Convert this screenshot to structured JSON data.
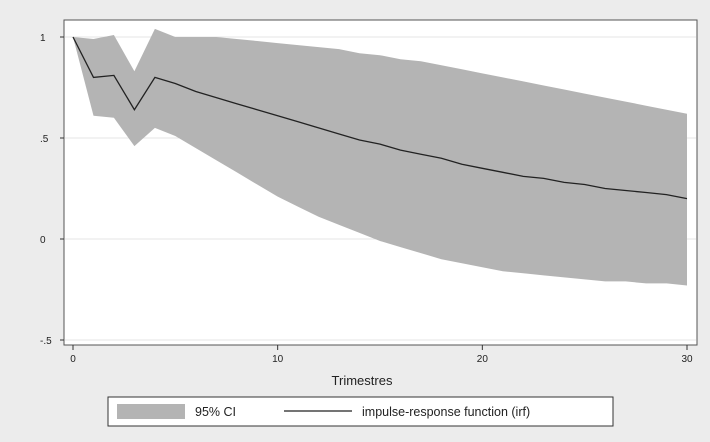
{
  "chart_data": {
    "type": "area",
    "xlabel": "Trimestres",
    "ylabel": "",
    "title": "",
    "xlim": [
      0,
      30
    ],
    "ylim": [
      -0.5,
      1
    ],
    "xticks": [
      0,
      10,
      20,
      30
    ],
    "xtick_labels": [
      "0",
      "10",
      "20",
      "30"
    ],
    "yticks": [
      1,
      0.5,
      0,
      -0.5
    ],
    "ytick_labels": [
      "1",
      ".5",
      "0",
      "-.5"
    ],
    "grid": true,
    "legend_position": "bottom",
    "series": [
      {
        "name": "95% CI",
        "kind": "band",
        "color": "#b4b4b4",
        "x": [
          0,
          1,
          2,
          3,
          4,
          5,
          6,
          7,
          8,
          9,
          10,
          11,
          12,
          13,
          14,
          15,
          16,
          17,
          18,
          19,
          20,
          21,
          22,
          23,
          24,
          25,
          26,
          27,
          28,
          29,
          30
        ],
        "upper": [
          1.0,
          0.99,
          1.01,
          0.83,
          1.04,
          1.0,
          1.0,
          1.0,
          0.99,
          0.98,
          0.97,
          0.96,
          0.95,
          0.94,
          0.92,
          0.91,
          0.89,
          0.88,
          0.86,
          0.84,
          0.82,
          0.8,
          0.78,
          0.76,
          0.74,
          0.72,
          0.7,
          0.68,
          0.66,
          0.64,
          0.62
        ],
        "lower": [
          1.0,
          0.61,
          0.6,
          0.46,
          0.55,
          0.51,
          0.45,
          0.39,
          0.33,
          0.27,
          0.21,
          0.16,
          0.11,
          0.07,
          0.03,
          -0.01,
          -0.04,
          -0.07,
          -0.1,
          -0.12,
          -0.14,
          -0.16,
          -0.17,
          -0.18,
          -0.19,
          -0.2,
          -0.21,
          -0.21,
          -0.22,
          -0.22,
          -0.23
        ]
      },
      {
        "name": "impulse-response function (irf)",
        "kind": "line",
        "color": "#222222",
        "x": [
          0,
          1,
          2,
          3,
          4,
          5,
          6,
          7,
          8,
          9,
          10,
          11,
          12,
          13,
          14,
          15,
          16,
          17,
          18,
          19,
          20,
          21,
          22,
          23,
          24,
          25,
          26,
          27,
          28,
          29,
          30
        ],
        "values": [
          1.0,
          0.8,
          0.81,
          0.64,
          0.8,
          0.77,
          0.73,
          0.7,
          0.67,
          0.64,
          0.61,
          0.58,
          0.55,
          0.52,
          0.49,
          0.47,
          0.44,
          0.42,
          0.4,
          0.37,
          0.35,
          0.33,
          0.31,
          0.3,
          0.28,
          0.27,
          0.25,
          0.24,
          0.23,
          0.22,
          0.2
        ]
      }
    ]
  }
}
